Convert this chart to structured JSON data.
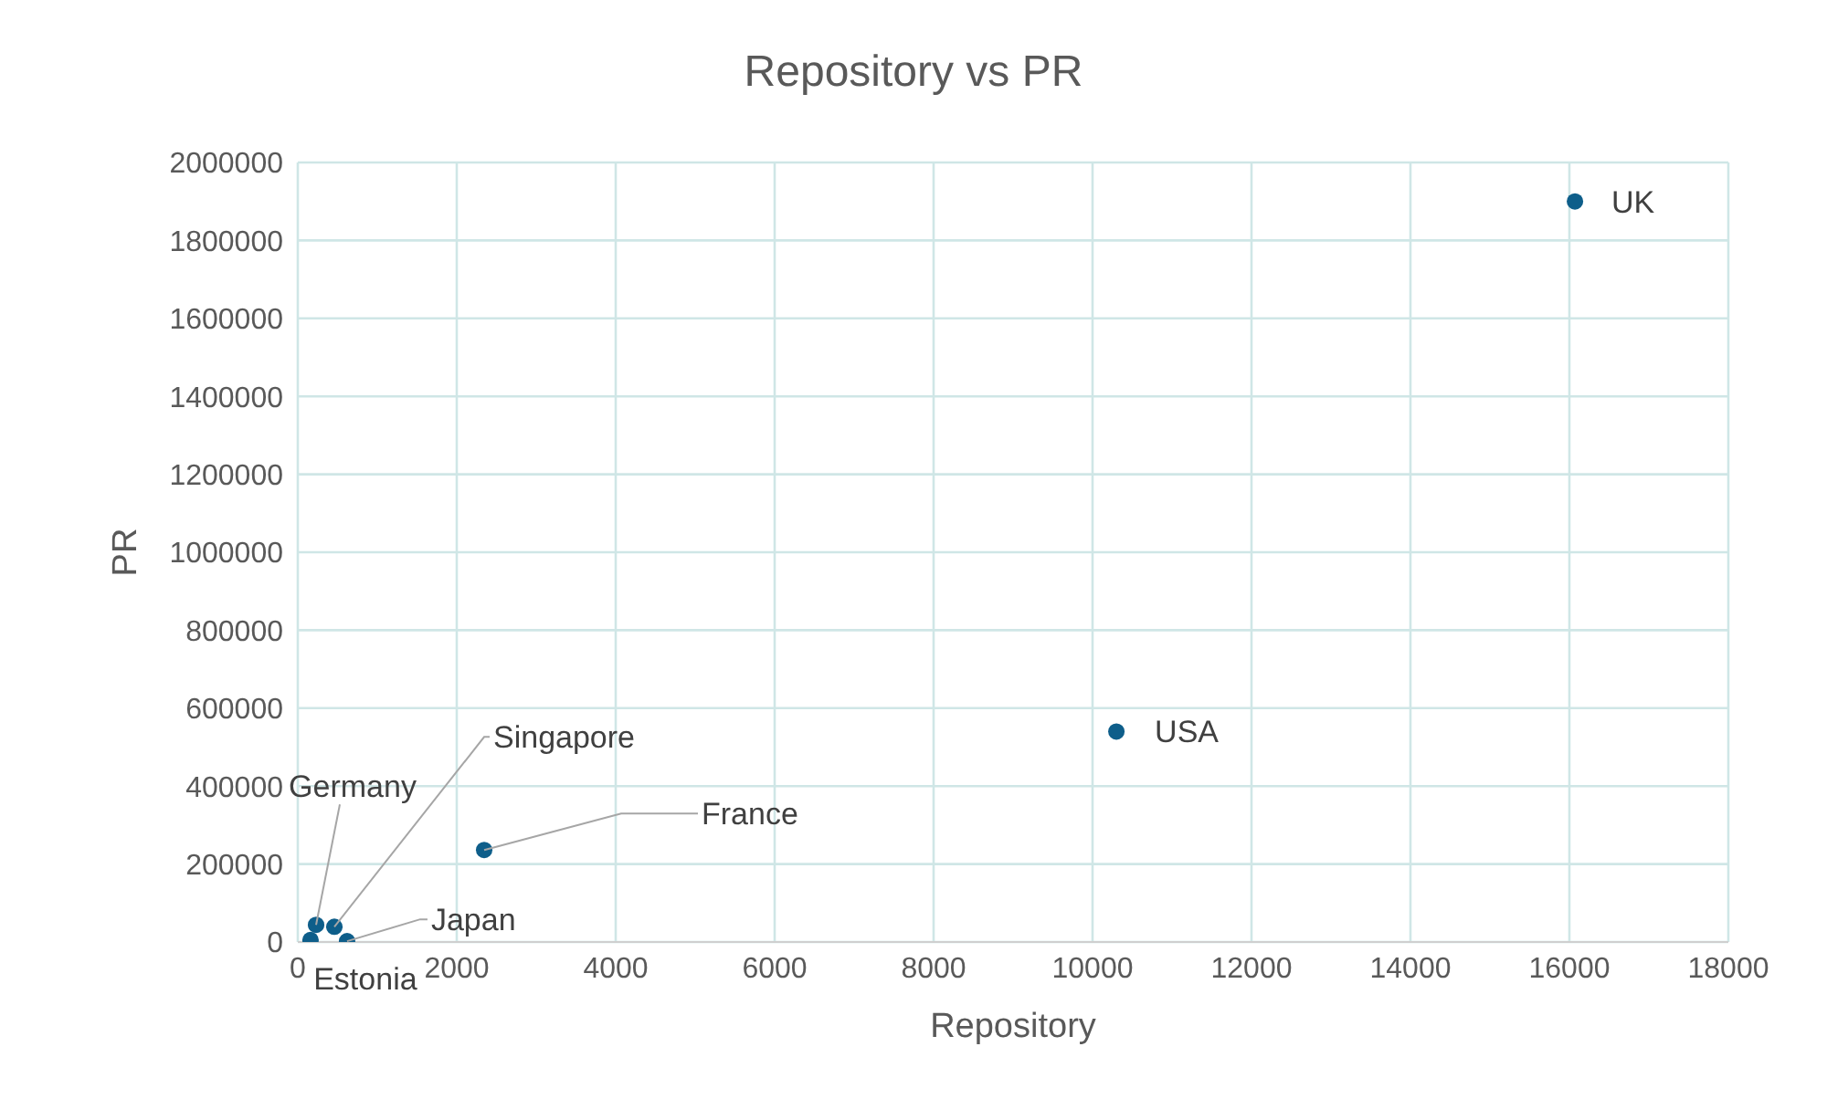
{
  "chart_data": {
    "type": "scatter",
    "title": "Repository vs PR",
    "xlabel": "Repository",
    "ylabel": "PR",
    "x": [
      16070,
      10300,
      2345,
      460,
      230,
      620,
      160
    ],
    "series": [
      {
        "color": "#0e5e8a",
        "values": [
          1900000,
          540000,
          236000,
          39000,
          44000,
          2000,
          5000
        ]
      }
    ],
    "xlim": [
      0,
      18000
    ],
    "xticks": [
      0,
      2000,
      4000,
      6000,
      8000,
      10000,
      12000,
      14000,
      16000,
      18000
    ],
    "ylim": [
      0,
      2000000
    ],
    "yticks": [
      0,
      200000,
      400000,
      600000,
      800000,
      1000000,
      1200000,
      1400000,
      1600000,
      1800000,
      2000000
    ],
    "grid": true,
    "marker": "circle",
    "annotations": [
      {
        "text": "UK",
        "x": 16070,
        "y": 1900000
      },
      {
        "text": "USA",
        "x": 10300,
        "y": 540000
      },
      {
        "text": "France",
        "x": 2345,
        "y": 236000
      },
      {
        "text": "Singapore",
        "x": 460,
        "y": 39000
      },
      {
        "text": "Germany",
        "x": 230,
        "y": 44000
      },
      {
        "text": "Japan",
        "x": 620,
        "y": 2000
      },
      {
        "text": "Estonia",
        "x": 160,
        "y": 5000
      }
    ]
  }
}
